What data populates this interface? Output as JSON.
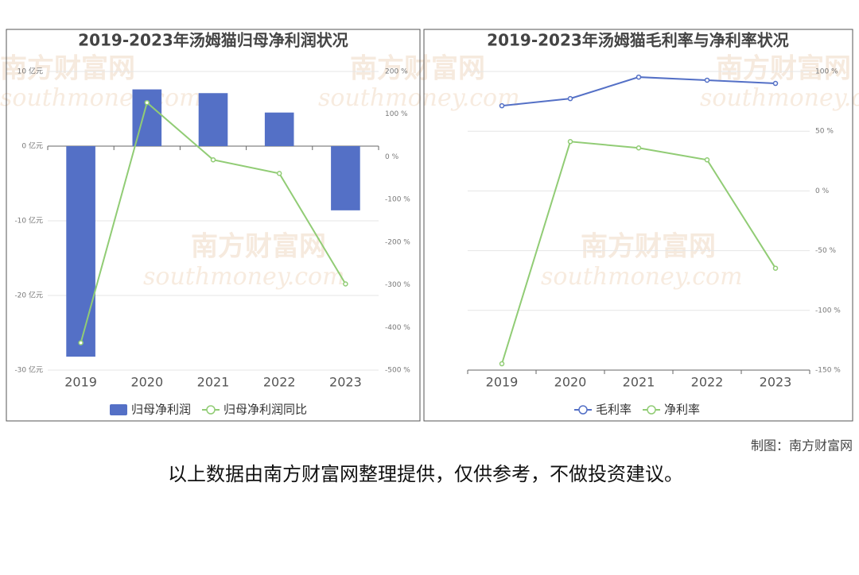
{
  "chart_data": [
    {
      "type": "combo",
      "title": "2019-2023年汤姆猫归母净利润状况",
      "categories": [
        "2019",
        "2020",
        "2021",
        "2022",
        "2023"
      ],
      "series": [
        {
          "name": "归母净利润",
          "kind": "bar",
          "color": "#5470c6",
          "values": [
            -28.2,
            7.6,
            7.1,
            4.5,
            -8.6
          ]
        },
        {
          "name": "归母净利润同比",
          "kind": "line",
          "axis": "y2",
          "color": "#91cc75",
          "values": [
            -436,
            127,
            -7,
            -39,
            -298
          ]
        }
      ],
      "ylim": [
        -30,
        10
      ],
      "yticks": [
        {
          "value": -30,
          "label": "-30 亿元"
        },
        {
          "value": -20,
          "label": "-20 亿元"
        },
        {
          "value": -10,
          "label": "-10 亿元"
        },
        {
          "value": 0,
          "label": "0 亿元"
        },
        {
          "value": 10,
          "label": "10 亿元"
        }
      ],
      "y2lim": [
        -500,
        200
      ],
      "y2ticks": [
        {
          "value": -500,
          "label": "-500 %"
        },
        {
          "value": -400,
          "label": "-400 %"
        },
        {
          "value": -300,
          "label": "-300 %"
        },
        {
          "value": -200,
          "label": "-200 %"
        },
        {
          "value": -100,
          "label": "-100 %"
        },
        {
          "value": 0,
          "label": "0 %"
        },
        {
          "value": 100,
          "label": "100 %"
        },
        {
          "value": 200,
          "label": "200 %"
        }
      ],
      "grid": true
    },
    {
      "type": "line",
      "title": "2019-2023年汤姆猫毛利率与净利率状况",
      "categories": [
        "2019",
        "2020",
        "2021",
        "2022",
        "2023"
      ],
      "series": [
        {
          "name": "毛利率",
          "kind": "line",
          "color": "#5470c6",
          "values": [
            71.3,
            77.3,
            95.3,
            92.7,
            90
          ]
        },
        {
          "name": "净利率",
          "kind": "line",
          "color": "#91cc75",
          "values": [
            -144.7,
            41.3,
            36,
            26,
            -64.7
          ]
        }
      ],
      "y2lim": [
        -150,
        100
      ],
      "y2ticks": [
        {
          "value": -150,
          "label": "-150 %"
        },
        {
          "value": -100,
          "label": "-100 %"
        },
        {
          "value": -50,
          "label": "-50 %"
        },
        {
          "value": 0,
          "label": "0 %"
        },
        {
          "value": 50,
          "label": "50 %"
        },
        {
          "value": 100,
          "label": "100 %"
        }
      ],
      "grid": true
    }
  ],
  "watermark": {
    "name": "南方财富网",
    "site": "southmoney.com"
  },
  "credit": "制图：南方财富网",
  "disclaimer": "以上数据由南方财富网整理提供，仅供参考，不做投资建议。"
}
